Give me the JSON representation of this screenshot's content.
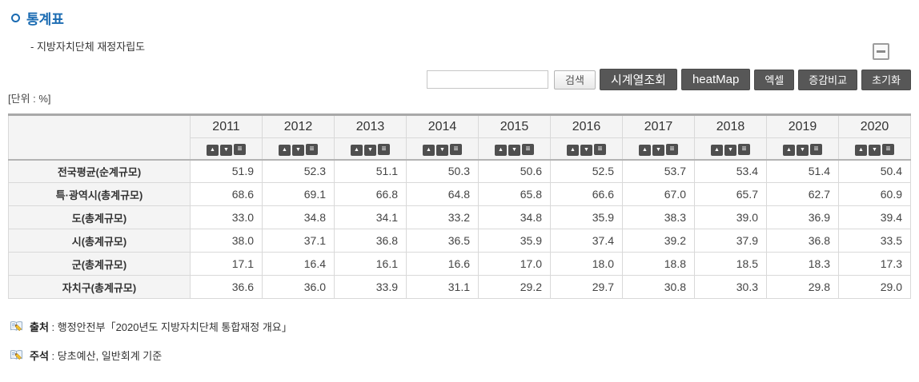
{
  "page": {
    "title": "통계표",
    "subtitle": "- 지방자치단체 재정자립도",
    "unit_label": "[단위 : %]"
  },
  "toolbar": {
    "search_value": "",
    "buttons": {
      "search": "검색",
      "timeseries": "시계열조회",
      "heatmap": "heatMap",
      "excel": "엑셀",
      "compare": "증감비교",
      "reset": "초기화"
    },
    "sort_icons": {
      "asc": "▲",
      "desc": "▼",
      "menu": "≡"
    }
  },
  "table": {
    "years": [
      "2011",
      "2012",
      "2013",
      "2014",
      "2015",
      "2016",
      "2017",
      "2018",
      "2019",
      "2020"
    ],
    "rows": [
      {
        "label": "전국평균(순계규모)",
        "values": [
          "51.9",
          "52.3",
          "51.1",
          "50.3",
          "50.6",
          "52.5",
          "53.7",
          "53.4",
          "51.4",
          "50.4"
        ]
      },
      {
        "label": "특·광역시(총계규모)",
        "values": [
          "68.6",
          "69.1",
          "66.8",
          "64.8",
          "65.8",
          "66.6",
          "67.0",
          "65.7",
          "62.7",
          "60.9"
        ]
      },
      {
        "label": "도(총계규모)",
        "values": [
          "33.0",
          "34.8",
          "34.1",
          "33.2",
          "34.8",
          "35.9",
          "38.3",
          "39.0",
          "36.9",
          "39.4"
        ]
      },
      {
        "label": "시(총계규모)",
        "values": [
          "38.0",
          "37.1",
          "36.8",
          "36.5",
          "35.9",
          "37.4",
          "39.2",
          "37.9",
          "36.8",
          "33.5"
        ]
      },
      {
        "label": "군(총계규모)",
        "values": [
          "17.1",
          "16.4",
          "16.1",
          "16.6",
          "17.0",
          "18.0",
          "18.8",
          "18.5",
          "18.3",
          "17.3"
        ]
      },
      {
        "label": "자치구(총계규모)",
        "values": [
          "36.6",
          "36.0",
          "33.9",
          "31.1",
          "29.2",
          "29.7",
          "30.8",
          "30.3",
          "29.8",
          "29.0"
        ]
      }
    ]
  },
  "footer": {
    "separator": " : ",
    "source_label": "출처",
    "source_text": "행정안전부「2020년도 지방자치단체 통합재정 개요」",
    "note_label": "주석",
    "note_text": "당초예산, 일반회계 기준"
  },
  "colors": {
    "title_blue": "#1a6bb2",
    "dark_button": "#575757",
    "header_bg": "#f4f4f4",
    "table_top_border": "#a8a8a8",
    "cell_border": "#d9d9d9",
    "text": "#333333"
  }
}
